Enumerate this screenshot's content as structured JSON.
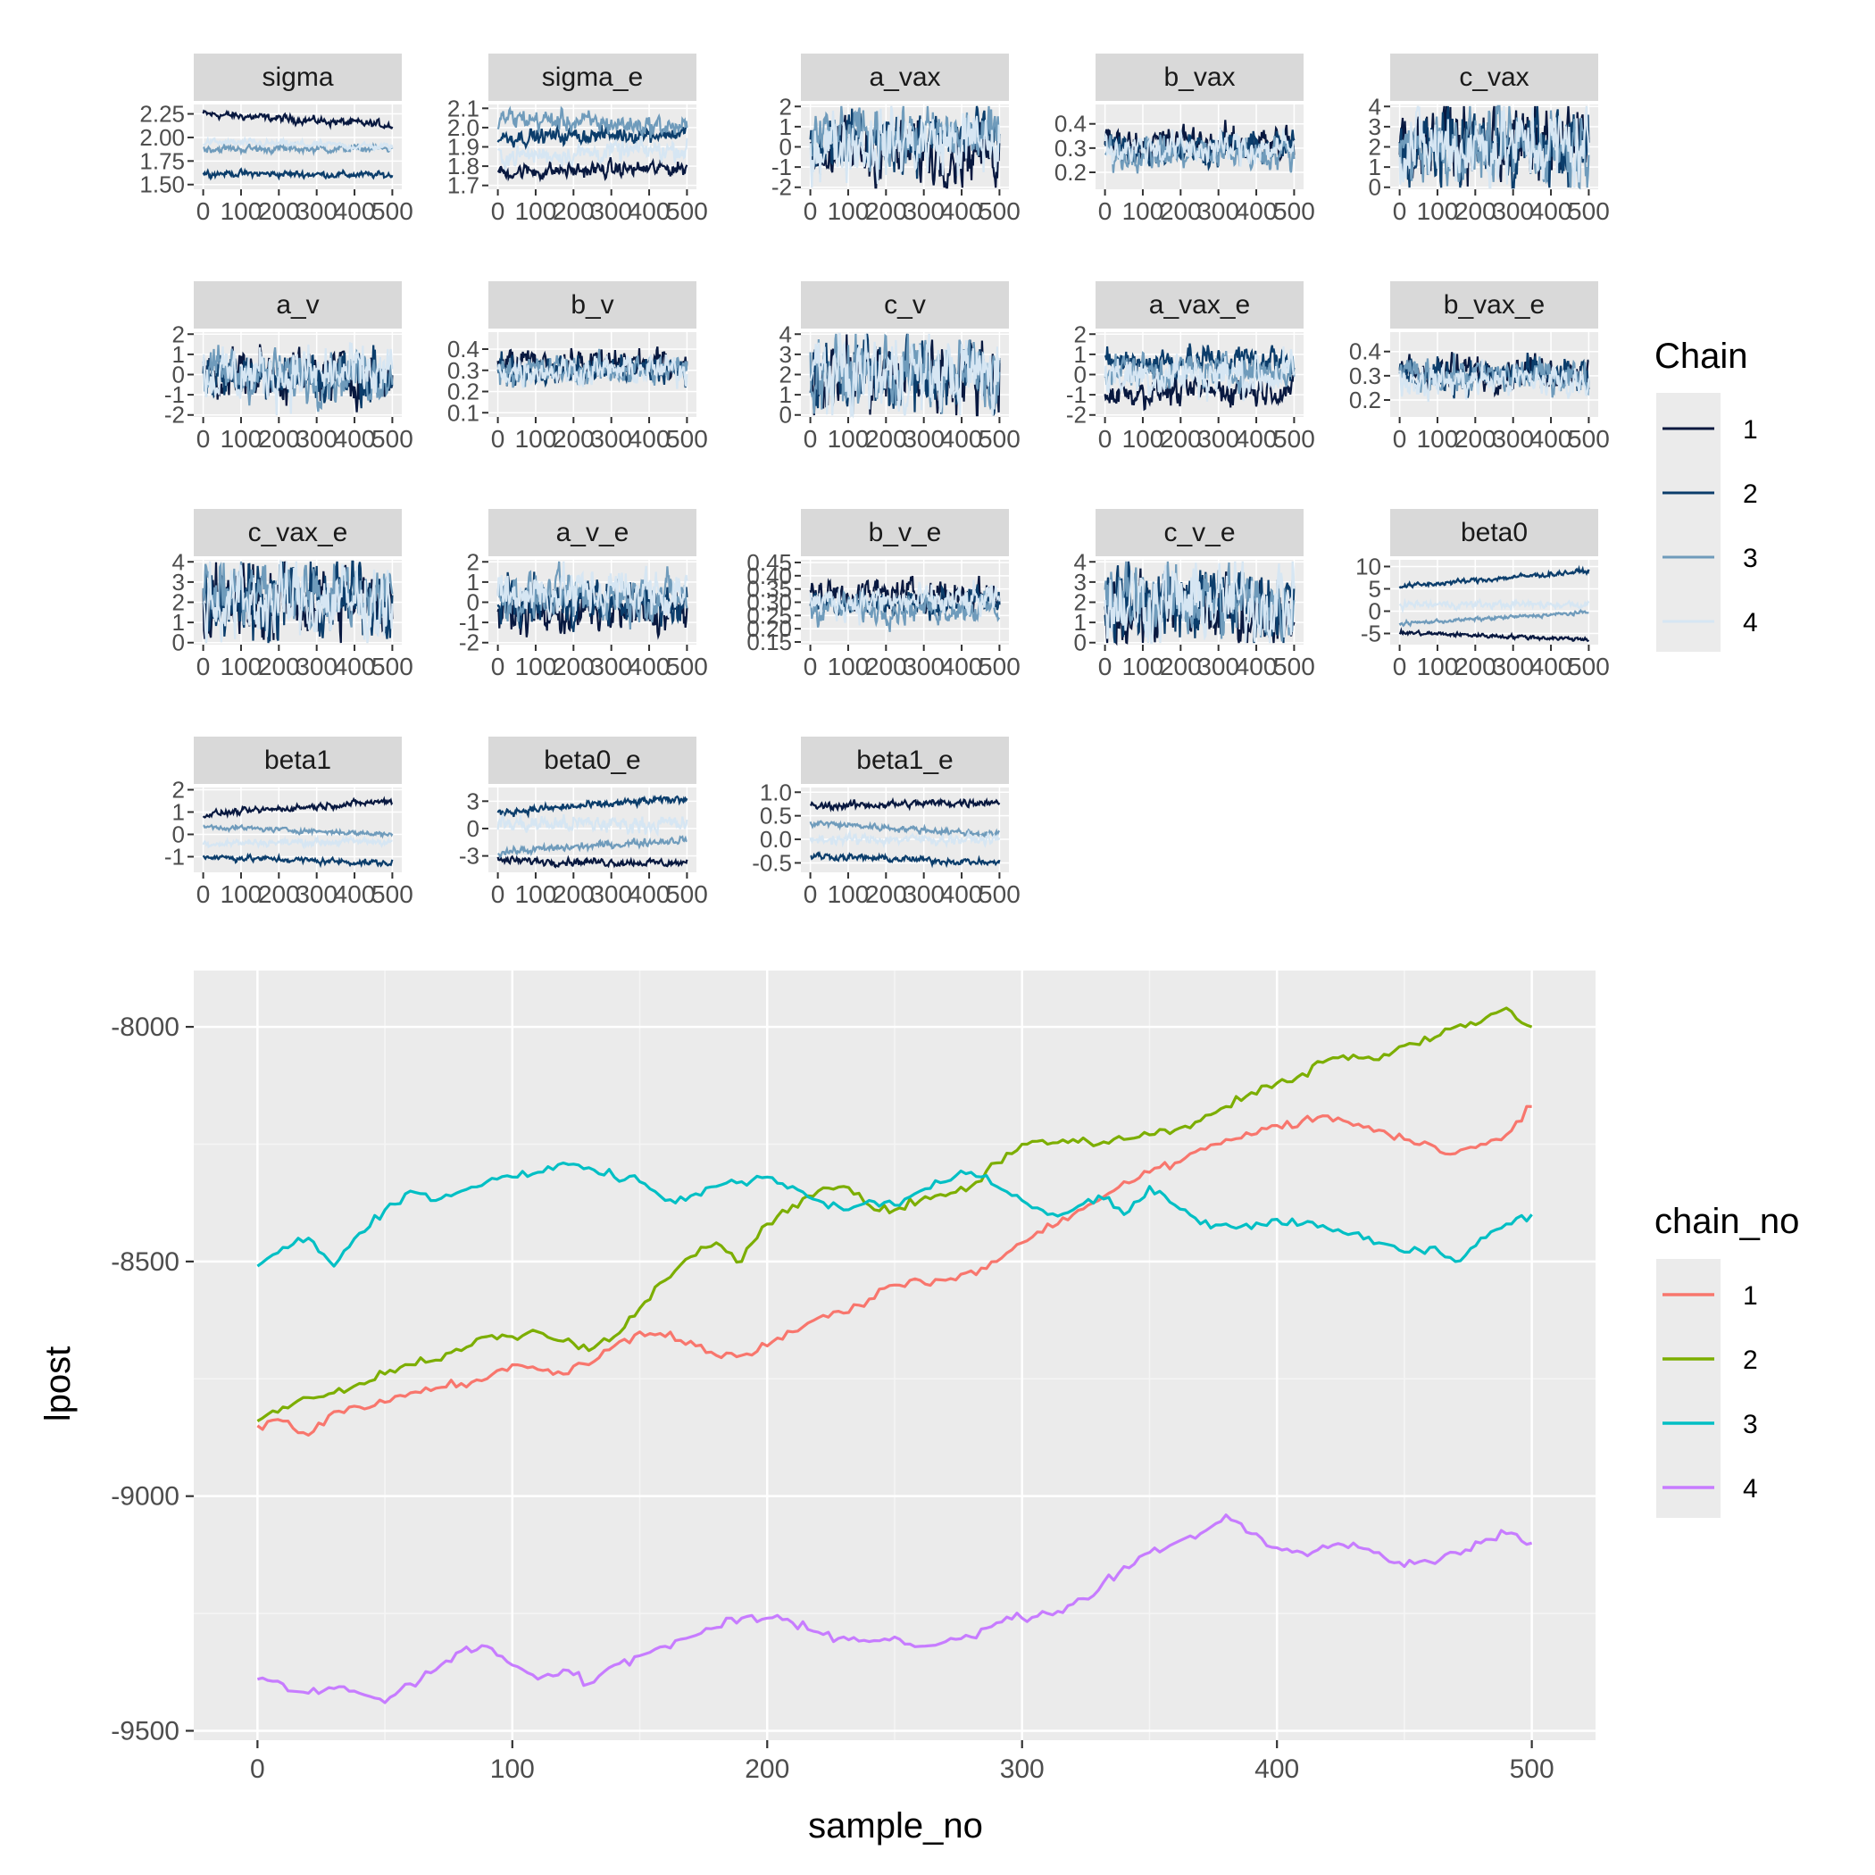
{
  "trace_panel": {
    "legend_title": "Chain",
    "legend_keys": [
      "1",
      "2",
      "3",
      "4"
    ],
    "chain_colors": [
      "#08183f",
      "#0b3d6b",
      "#6f9bbb",
      "#d6e6f3"
    ],
    "x_tick_labels": [
      "0",
      "100",
      "200",
      "300",
      "400",
      "500"
    ],
    "x_ticks": [
      0,
      100,
      200,
      300,
      400,
      500
    ],
    "xlim": [
      0,
      500
    ],
    "facets": [
      {
        "name": "sigma",
        "ylim": [
          1.45,
          2.35
        ],
        "y_ticks": [
          "1.50",
          "1.75",
          "2.00",
          "2.25"
        ],
        "chains": [
          {
            "level": 2.25,
            "drift": -0.12,
            "noise": 0.03
          },
          {
            "level": 1.62,
            "drift": -0.02,
            "noise": 0.025
          },
          {
            "level": 1.88,
            "drift": 0.0,
            "noise": 0.03
          },
          {
            "level": 1.95,
            "drift": -0.05,
            "noise": 0.03
          }
        ]
      },
      {
        "name": "sigma_e",
        "ylim": [
          1.68,
          2.12
        ],
        "y_ticks": [
          "1.7",
          "1.8",
          "1.9",
          "2.0",
          "2.1"
        ],
        "chains": [
          {
            "level": 1.77,
            "drift": 0.02,
            "noise": 0.03
          },
          {
            "level": 1.95,
            "drift": 0.02,
            "noise": 0.03
          },
          {
            "level": 2.05,
            "drift": -0.05,
            "noise": 0.04
          },
          {
            "level": 1.85,
            "drift": 0.04,
            "noise": 0.04
          }
        ]
      },
      {
        "name": "a_vax",
        "ylim": [
          -2.1,
          2.1
        ],
        "y_ticks": [
          "-2",
          "-1",
          "0",
          "1",
          "2"
        ],
        "chains": [
          {
            "level": -0.3,
            "drift": 0.1,
            "noise": 1.1
          },
          {
            "level": 0.3,
            "drift": 0.1,
            "noise": 1.0
          },
          {
            "level": 0.5,
            "drift": 0.0,
            "noise": 1.0
          },
          {
            "level": 0.2,
            "drift": 0.0,
            "noise": 1.2
          }
        ]
      },
      {
        "name": "b_vax",
        "ylim": [
          0.13,
          0.48
        ],
        "y_ticks": [
          "0.2",
          "0.3",
          "0.4"
        ],
        "chains": [
          {
            "level": 0.32,
            "drift": 0.0,
            "noise": 0.05
          },
          {
            "level": 0.3,
            "drift": 0.0,
            "noise": 0.05
          },
          {
            "level": 0.28,
            "drift": 0.0,
            "noise": 0.05
          },
          {
            "level": 0.3,
            "drift": 0.0,
            "noise": 0.05
          }
        ]
      },
      {
        "name": "c_vax",
        "ylim": [
          -0.1,
          4.1
        ],
        "y_ticks": [
          "0",
          "1",
          "2",
          "3",
          "4"
        ],
        "chains": [
          {
            "level": 2.2,
            "drift": 0.0,
            "noise": 1.3
          },
          {
            "level": 2.0,
            "drift": 0.0,
            "noise": 1.3
          },
          {
            "level": 2.0,
            "drift": 0.0,
            "noise": 1.3
          },
          {
            "level": 2.0,
            "drift": 0.0,
            "noise": 1.4
          }
        ]
      },
      {
        "name": "a_v",
        "ylim": [
          -2.1,
          2.1
        ],
        "y_ticks": [
          "-2",
          "-1",
          "0",
          "1",
          "2"
        ],
        "chains": [
          {
            "level": 0.0,
            "drift": 0.0,
            "noise": 0.9
          },
          {
            "level": 0.0,
            "drift": 0.0,
            "noise": 0.9
          },
          {
            "level": 0.0,
            "drift": 0.0,
            "noise": 0.9
          },
          {
            "level": 0.0,
            "drift": 0.0,
            "noise": 1.0
          }
        ]
      },
      {
        "name": "b_v",
        "ylim": [
          0.08,
          0.48
        ],
        "y_ticks": [
          "0.1",
          "0.2",
          "0.3",
          "0.4"
        ],
        "chains": [
          {
            "level": 0.33,
            "drift": 0.0,
            "noise": 0.05
          },
          {
            "level": 0.3,
            "drift": 0.0,
            "noise": 0.05
          },
          {
            "level": 0.3,
            "drift": 0.0,
            "noise": 0.05
          },
          {
            "level": 0.3,
            "drift": 0.0,
            "noise": 0.05
          }
        ]
      },
      {
        "name": "c_v",
        "ylim": [
          -0.1,
          4.1
        ],
        "y_ticks": [
          "0",
          "1",
          "2",
          "3",
          "4"
        ],
        "chains": [
          {
            "level": 2.0,
            "drift": 0.0,
            "noise": 1.3
          },
          {
            "level": 2.0,
            "drift": 0.0,
            "noise": 1.3
          },
          {
            "level": 2.0,
            "drift": 0.0,
            "noise": 1.3
          },
          {
            "level": 2.0,
            "drift": 0.0,
            "noise": 1.4
          }
        ]
      },
      {
        "name": "a_vax_e",
        "ylim": [
          -2.1,
          2.1
        ],
        "y_ticks": [
          "-2",
          "-1",
          "0",
          "1",
          "2"
        ],
        "chains": [
          {
            "level": -0.9,
            "drift": 0.2,
            "noise": 0.5
          },
          {
            "level": 0.6,
            "drift": 0.1,
            "noise": 0.6
          },
          {
            "level": 0.2,
            "drift": 0.0,
            "noise": 0.6
          },
          {
            "level": 0.0,
            "drift": 0.0,
            "noise": 0.8
          }
        ]
      },
      {
        "name": "b_vax_e",
        "ylim": [
          0.13,
          0.48
        ],
        "y_ticks": [
          "0.2",
          "0.3",
          "0.4"
        ],
        "chains": [
          {
            "level": 0.32,
            "drift": 0.0,
            "noise": 0.05
          },
          {
            "level": 0.3,
            "drift": 0.0,
            "noise": 0.05
          },
          {
            "level": 0.3,
            "drift": 0.0,
            "noise": 0.05
          },
          {
            "level": 0.28,
            "drift": 0.0,
            "noise": 0.05
          }
        ]
      },
      {
        "name": "c_vax_e",
        "ylim": [
          -0.1,
          4.1
        ],
        "y_ticks": [
          "0",
          "1",
          "2",
          "3",
          "4"
        ],
        "chains": [
          {
            "level": 2.0,
            "drift": 0.0,
            "noise": 1.3
          },
          {
            "level": 2.2,
            "drift": 0.0,
            "noise": 1.3
          },
          {
            "level": 2.5,
            "drift": 0.0,
            "noise": 1.2
          },
          {
            "level": 2.0,
            "drift": 0.0,
            "noise": 1.4
          }
        ]
      },
      {
        "name": "a_v_e",
        "ylim": [
          -2.1,
          2.1
        ],
        "y_ticks": [
          "-2",
          "-1",
          "0",
          "1",
          "2"
        ],
        "chains": [
          {
            "level": -0.5,
            "drift": 0.0,
            "noise": 0.8
          },
          {
            "level": 0.0,
            "drift": 0.0,
            "noise": 0.8
          },
          {
            "level": 0.3,
            "drift": 0.0,
            "noise": 0.8
          },
          {
            "level": 0.5,
            "drift": 0.0,
            "noise": 0.9
          }
        ]
      },
      {
        "name": "b_v_e",
        "ylim": [
          0.14,
          0.46
        ],
        "y_ticks": [
          "0.15",
          "0.20",
          "0.25",
          "0.30",
          "0.35",
          "0.40",
          "0.45"
        ],
        "chains": [
          {
            "level": 0.33,
            "drift": 0.0,
            "noise": 0.04
          },
          {
            "level": 0.3,
            "drift": 0.0,
            "noise": 0.04
          },
          {
            "level": 0.28,
            "drift": 0.0,
            "noise": 0.04
          },
          {
            "level": 0.3,
            "drift": 0.0,
            "noise": 0.045
          }
        ]
      },
      {
        "name": "c_v_e",
        "ylim": [
          -0.1,
          4.1
        ],
        "y_ticks": [
          "0",
          "1",
          "2",
          "3",
          "4"
        ],
        "chains": [
          {
            "level": 1.5,
            "drift": 0.0,
            "noise": 1.2
          },
          {
            "level": 2.0,
            "drift": 0.0,
            "noise": 1.3
          },
          {
            "level": 2.0,
            "drift": 0.0,
            "noise": 1.3
          },
          {
            "level": 2.0,
            "drift": 0.0,
            "noise": 1.4
          }
        ]
      },
      {
        "name": "beta0",
        "ylim": [
          -7.5,
          11.5
        ],
        "y_ticks": [
          "-5",
          "0",
          "5",
          "10"
        ],
        "chains": [
          {
            "level": -4.8,
            "drift": -1.5,
            "noise": 0.35
          },
          {
            "level": 5.5,
            "drift": 3.5,
            "noise": 0.4
          },
          {
            "level": -2.8,
            "drift": 2.5,
            "noise": 0.3
          },
          {
            "level": 1.5,
            "drift": 0.0,
            "noise": 0.6
          }
        ]
      },
      {
        "name": "beta1",
        "ylim": [
          -1.7,
          2.1
        ],
        "y_ticks": [
          "-1",
          "0",
          "1",
          "2"
        ],
        "chains": [
          {
            "level": 0.9,
            "drift": 0.6,
            "noise": 0.1
          },
          {
            "level": -1.0,
            "drift": -0.3,
            "noise": 0.1
          },
          {
            "level": 0.35,
            "drift": -0.35,
            "noise": 0.08
          },
          {
            "level": -0.4,
            "drift": 0.1,
            "noise": 0.12
          }
        ]
      },
      {
        "name": "beta0_e",
        "ylim": [
          -4.8,
          4.5
        ],
        "y_ticks": [
          "-3",
          "0",
          "3"
        ],
        "chains": [
          {
            "level": -3.5,
            "drift": -0.3,
            "noise": 0.3
          },
          {
            "level": 1.8,
            "drift": 1.5,
            "noise": 0.3
          },
          {
            "level": -2.6,
            "drift": 1.4,
            "noise": 0.3
          },
          {
            "level": 0.5,
            "drift": 0.0,
            "noise": 0.7
          }
        ]
      },
      {
        "name": "beta1_e",
        "ylim": [
          -0.7,
          1.1
        ],
        "y_ticks": [
          "-0.5",
          "0.0",
          "0.5",
          "1.0"
        ],
        "chains": [
          {
            "level": 0.7,
            "drift": 0.1,
            "noise": 0.06
          },
          {
            "level": -0.35,
            "drift": -0.15,
            "noise": 0.05
          },
          {
            "level": 0.35,
            "drift": -0.25,
            "noise": 0.05
          },
          {
            "level": 0.0,
            "drift": 0.0,
            "noise": 0.08
          }
        ]
      }
    ]
  },
  "chart_data": {
    "type": "line",
    "xlabel": "sample_no",
    "ylabel": "lpost",
    "legend_title": "chain_no",
    "xlim": [
      -25,
      525
    ],
    "ylim": [
      -9520,
      -7880
    ],
    "x_ticks": [
      0,
      100,
      200,
      300,
      400,
      500
    ],
    "x_tick_labels": [
      "0",
      "100",
      "200",
      "300",
      "400",
      "500"
    ],
    "y_ticks": [
      -9500,
      -9000,
      -8500,
      -8000
    ],
    "y_tick_labels": [
      "-9500",
      "-9000",
      "-8500",
      "-8000"
    ],
    "grid": true,
    "legend_position": "right",
    "series": [
      {
        "name": "1",
        "color": "#f8766d",
        "x": [
          0,
          10,
          20,
          30,
          40,
          50,
          60,
          70,
          80,
          90,
          100,
          110,
          120,
          130,
          140,
          150,
          160,
          170,
          180,
          190,
          200,
          210,
          220,
          230,
          240,
          250,
          260,
          270,
          280,
          290,
          300,
          310,
          320,
          330,
          340,
          350,
          360,
          370,
          380,
          390,
          400,
          410,
          420,
          430,
          440,
          450,
          460,
          470,
          480,
          490,
          500
        ],
        "y": [
          -8850,
          -8840,
          -8870,
          -8820,
          -8810,
          -8800,
          -8780,
          -8770,
          -8760,
          -8750,
          -8720,
          -8730,
          -8740,
          -8720,
          -8680,
          -8650,
          -8660,
          -8670,
          -8700,
          -8700,
          -8680,
          -8650,
          -8620,
          -8610,
          -8580,
          -8550,
          -8540,
          -8540,
          -8520,
          -8500,
          -8460,
          -8420,
          -8400,
          -8370,
          -8330,
          -8310,
          -8290,
          -8260,
          -8240,
          -8230,
          -8210,
          -8200,
          -8190,
          -8210,
          -8220,
          -8240,
          -8250,
          -8270,
          -8250,
          -8230,
          -8170
        ]
      },
      {
        "name": "2",
        "color": "#7cae00",
        "x": [
          0,
          10,
          20,
          30,
          40,
          50,
          60,
          70,
          80,
          90,
          100,
          110,
          120,
          130,
          140,
          150,
          160,
          170,
          180,
          190,
          200,
          210,
          220,
          230,
          240,
          250,
          260,
          270,
          280,
          290,
          300,
          310,
          320,
          330,
          340,
          350,
          360,
          370,
          380,
          390,
          400,
          410,
          420,
          430,
          440,
          450,
          460,
          470,
          480,
          490,
          500
        ],
        "y": [
          -8840,
          -8810,
          -8790,
          -8780,
          -8760,
          -8740,
          -8720,
          -8710,
          -8690,
          -8660,
          -8660,
          -8650,
          -8670,
          -8690,
          -8660,
          -8600,
          -8540,
          -8490,
          -8460,
          -8500,
          -8420,
          -8380,
          -8350,
          -8340,
          -8380,
          -8390,
          -8370,
          -8360,
          -8340,
          -8290,
          -8250,
          -8250,
          -8240,
          -8250,
          -8240,
          -8230,
          -8220,
          -8200,
          -8170,
          -8140,
          -8120,
          -8100,
          -8070,
          -8060,
          -8070,
          -8040,
          -8030,
          -8000,
          -7990,
          -7960,
          -8000
        ]
      },
      {
        "name": "3",
        "color": "#00bfc4",
        "x": [
          0,
          10,
          20,
          30,
          40,
          50,
          60,
          70,
          80,
          90,
          100,
          110,
          120,
          130,
          140,
          150,
          160,
          170,
          180,
          190,
          200,
          210,
          220,
          230,
          240,
          250,
          260,
          270,
          280,
          290,
          300,
          310,
          320,
          330,
          340,
          350,
          360,
          370,
          380,
          390,
          400,
          410,
          420,
          430,
          440,
          450,
          460,
          470,
          480,
          490,
          500
        ],
        "y": [
          -8510,
          -8470,
          -8450,
          -8510,
          -8440,
          -8390,
          -8350,
          -8370,
          -8350,
          -8330,
          -8320,
          -8310,
          -8290,
          -8300,
          -8320,
          -8330,
          -8370,
          -8360,
          -8340,
          -8330,
          -8320,
          -8340,
          -8370,
          -8390,
          -8370,
          -8380,
          -8350,
          -8330,
          -8310,
          -8340,
          -8370,
          -8400,
          -8390,
          -8360,
          -8400,
          -8340,
          -8380,
          -8420,
          -8420,
          -8430,
          -8410,
          -8420,
          -8430,
          -8440,
          -8460,
          -8480,
          -8470,
          -8500,
          -8450,
          -8420,
          -8400
        ]
      },
      {
        "name": "4",
        "color": "#c77cff",
        "x": [
          0,
          10,
          20,
          30,
          40,
          50,
          60,
          70,
          80,
          90,
          100,
          110,
          120,
          130,
          140,
          150,
          160,
          170,
          180,
          190,
          200,
          210,
          220,
          230,
          240,
          250,
          260,
          270,
          280,
          290,
          300,
          310,
          320,
          330,
          340,
          350,
          360,
          370,
          380,
          390,
          400,
          410,
          420,
          430,
          440,
          450,
          460,
          470,
          480,
          490,
          500
        ],
        "y": [
          -9390,
          -9400,
          -9420,
          -9410,
          -9420,
          -9440,
          -9400,
          -9370,
          -9330,
          -9320,
          -9360,
          -9390,
          -9370,
          -9400,
          -9360,
          -9340,
          -9320,
          -9300,
          -9280,
          -9260,
          -9260,
          -9270,
          -9290,
          -9300,
          -9310,
          -9300,
          -9320,
          -9310,
          -9300,
          -9270,
          -9260,
          -9250,
          -9230,
          -9200,
          -9150,
          -9120,
          -9100,
          -9080,
          -9040,
          -9080,
          -9110,
          -9120,
          -9110,
          -9100,
          -9120,
          -9150,
          -9140,
          -9120,
          -9100,
          -9080,
          -9100
        ]
      }
    ]
  }
}
